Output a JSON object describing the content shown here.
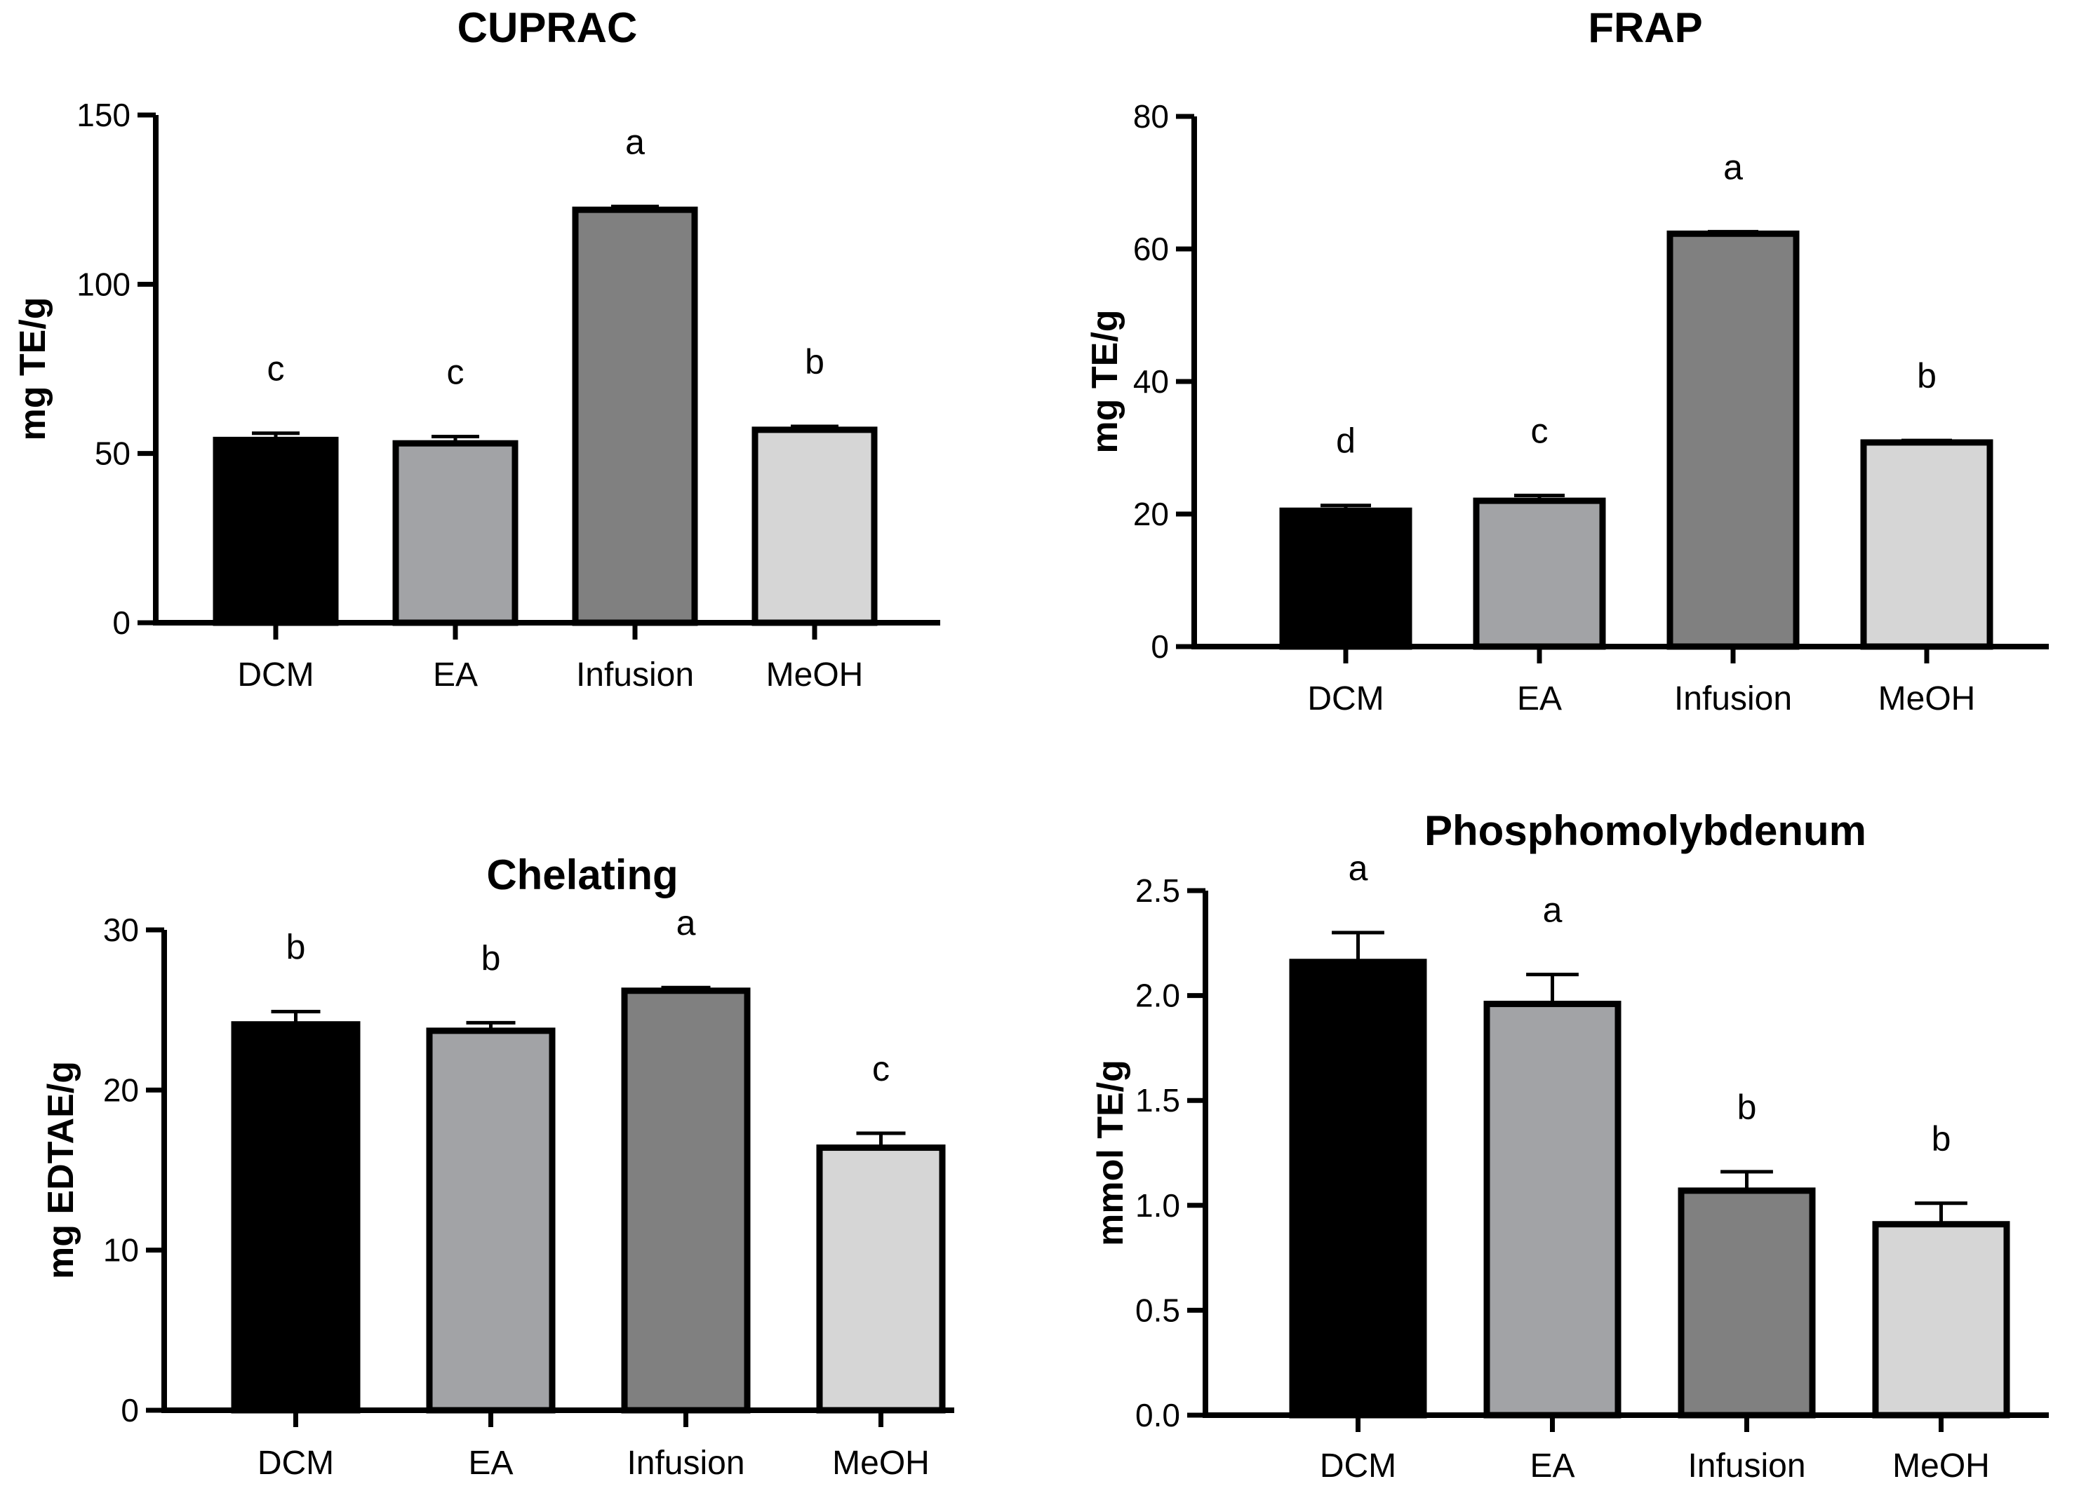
{
  "chart_data": [
    {
      "type": "bar",
      "title": "CUPRAC",
      "ylabel": "mg  TE/g",
      "xlabel": "",
      "categories": [
        "DCM",
        "EA",
        "Infusion",
        "MeOH"
      ],
      "values": [
        54,
        53,
        122,
        57
      ],
      "errors": [
        2,
        2,
        1,
        1
      ],
      "significance": [
        "c",
        "c",
        "a",
        "b"
      ],
      "ylim": [
        0,
        150
      ],
      "yticks": [
        0,
        50,
        100,
        150
      ],
      "tick_labels": [
        "0",
        "50",
        "100",
        "150"
      ],
      "bar_colors": [
        "#000000",
        "#a2a3a6",
        "#808080",
        "#d6d6d6"
      ]
    },
    {
      "type": "bar",
      "title": "FRAP",
      "ylabel": "mg  TE/g",
      "xlabel": "",
      "categories": [
        "DCM",
        "EA",
        "Infusion",
        "MeOH"
      ],
      "values": [
        20.5,
        22,
        62.3,
        30.8
      ],
      "errors": [
        0.8,
        0.8,
        0.3,
        0.3
      ],
      "significance": [
        "d",
        "c",
        "a",
        "b"
      ],
      "ylim": [
        0,
        80
      ],
      "yticks": [
        0,
        20,
        40,
        60,
        80
      ],
      "tick_labels": [
        "0",
        "20",
        "40",
        "60",
        "80"
      ],
      "bar_colors": [
        "#000000",
        "#a2a3a6",
        "#808080",
        "#d6d6d6"
      ]
    },
    {
      "type": "bar",
      "title": "Chelating",
      "ylabel": "mg  EDTAE/g",
      "xlabel": "",
      "categories": [
        "DCM",
        "EA",
        "Infusion",
        "MeOH"
      ],
      "values": [
        24.1,
        23.7,
        26.2,
        16.4
      ],
      "errors": [
        0.8,
        0.5,
        0.2,
        0.9
      ],
      "significance": [
        "b",
        "b",
        "a",
        "c"
      ],
      "ylim": [
        0,
        30
      ],
      "yticks": [
        0,
        10,
        20,
        30
      ],
      "tick_labels": [
        "0",
        "10",
        "20",
        "30"
      ],
      "bar_colors": [
        "#000000",
        "#a2a3a6",
        "#808080",
        "#d6d6d6"
      ]
    },
    {
      "type": "bar",
      "title": "Phosphomolybdenum",
      "ylabel": "mmol TE/g",
      "xlabel": "",
      "categories": [
        "DCM",
        "EA",
        "Infusion",
        "MeOH"
      ],
      "values": [
        2.16,
        1.96,
        1.07,
        0.91
      ],
      "errors": [
        0.14,
        0.14,
        0.09,
        0.1
      ],
      "significance": [
        "a",
        "a",
        "b",
        "b"
      ],
      "ylim": [
        0,
        2.5
      ],
      "yticks": [
        0,
        0.5,
        1.0,
        1.5,
        2.0,
        2.5
      ],
      "tick_labels": [
        "0.0",
        "0.5",
        "1.0",
        "1.5",
        "2.0",
        "2.5"
      ],
      "bar_colors": [
        "#000000",
        "#a2a3a6",
        "#808080",
        "#d6d6d6"
      ]
    }
  ]
}
